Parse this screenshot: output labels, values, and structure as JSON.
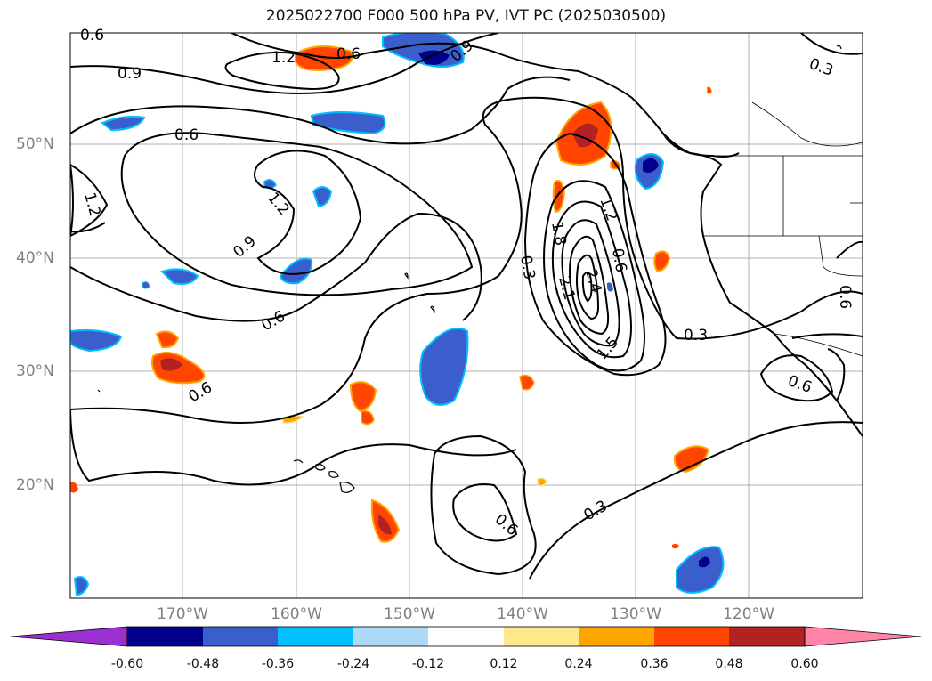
{
  "title": "2025022700 F000 500 hPa PV, IVT PC (2025030500)",
  "lat_labels": [
    "50°N",
    "40°N",
    "30°N",
    "20°N"
  ],
  "lon_labels": [
    "170°W",
    "160°W",
    "150°W",
    "140°W",
    "130°W",
    "120°W"
  ],
  "contour_labels": [
    "0.6",
    "1.2",
    "0.6",
    "0.9",
    "0.9",
    "0.6",
    "1.2",
    "1.2",
    "0.9",
    "0.6",
    "0.6",
    "0.3",
    "1.8",
    "2.1",
    "2.4",
    "0.6",
    "1.5",
    "1.2",
    "0.3",
    "0.3",
    "0.6",
    "0.6",
    "0.3",
    "0.6"
  ],
  "colorbar": {
    "ticks": [
      "-0.60",
      "-0.48",
      "-0.36",
      "-0.24",
      "-0.12",
      "0.12",
      "0.24",
      "0.36",
      "0.48",
      "0.60"
    ],
    "colors": {
      "below": "#9b30d0",
      "bins": [
        "#00008b",
        "#3a5fcd",
        "#00bfff",
        "#add8f6",
        "#ffffff",
        "#ffe88a",
        "#ffa500",
        "#ff4500",
        "#b22222"
      ],
      "above": "#ff85a8"
    }
  },
  "colors": {
    "land": "#000000",
    "grid": "#b0b0b0",
    "contour": "#000000"
  }
}
